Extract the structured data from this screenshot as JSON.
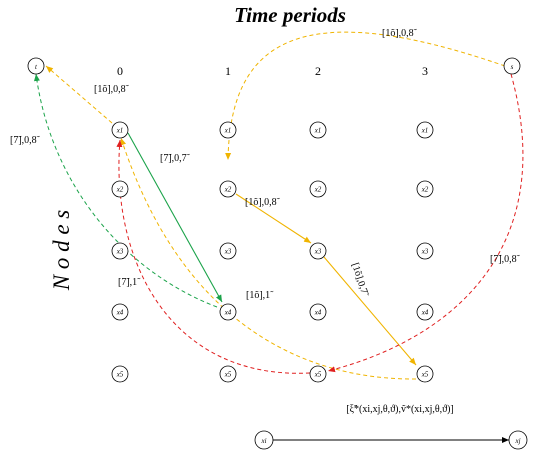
{
  "title": "Time periods",
  "axis_label": "N o d e s",
  "periods": [
    "0",
    "1",
    "2",
    "3"
  ],
  "rows": [
    "x1",
    "x2",
    "x3",
    "x4",
    "x5"
  ],
  "special_nodes": {
    "sink": "t",
    "source": "s"
  },
  "colors": {
    "orange": "#F0B400",
    "red": "#E02020",
    "green": "#1BA34A",
    "black": "#000000"
  },
  "edges": [
    {
      "id": "s-t",
      "color": "orange",
      "dashed": true,
      "label": "[1õ],0,8̃"
    },
    {
      "id": "x1-t",
      "color": "orange",
      "dashed": true,
      "label": "[1õ],0,8̃"
    },
    {
      "id": "s-x2",
      "color": "orange",
      "dashed": true,
      "label": ""
    },
    {
      "id": "x2-x3",
      "color": "orange",
      "dashed": false,
      "label": "[1õ],0,8̃"
    },
    {
      "id": "x3-x5",
      "color": "orange",
      "dashed": false,
      "label": "[1õ],0,7̃"
    },
    {
      "id": "x5-x1",
      "color": "orange",
      "dashed": true,
      "label": "[1õ],1̃"
    },
    {
      "id": "x1-x4",
      "color": "green",
      "dashed": false,
      "label": "[7̃],0,7̃"
    },
    {
      "id": "x4-t",
      "color": "green",
      "dashed": true,
      "label": "[7̃],0,8̃"
    },
    {
      "id": "s-x5",
      "color": "red",
      "dashed": true,
      "label": "[7̃],0,8̃"
    },
    {
      "id": "x5-x1b",
      "color": "red",
      "dashed": true,
      "label": "[7̃],1̃"
    }
  ],
  "legend": {
    "label": "[ξ̃*(xi,xj,θ,ϑ),ṽ*(xi,xj,θ,ϑ)]",
    "from": "xi",
    "to": "xj"
  }
}
